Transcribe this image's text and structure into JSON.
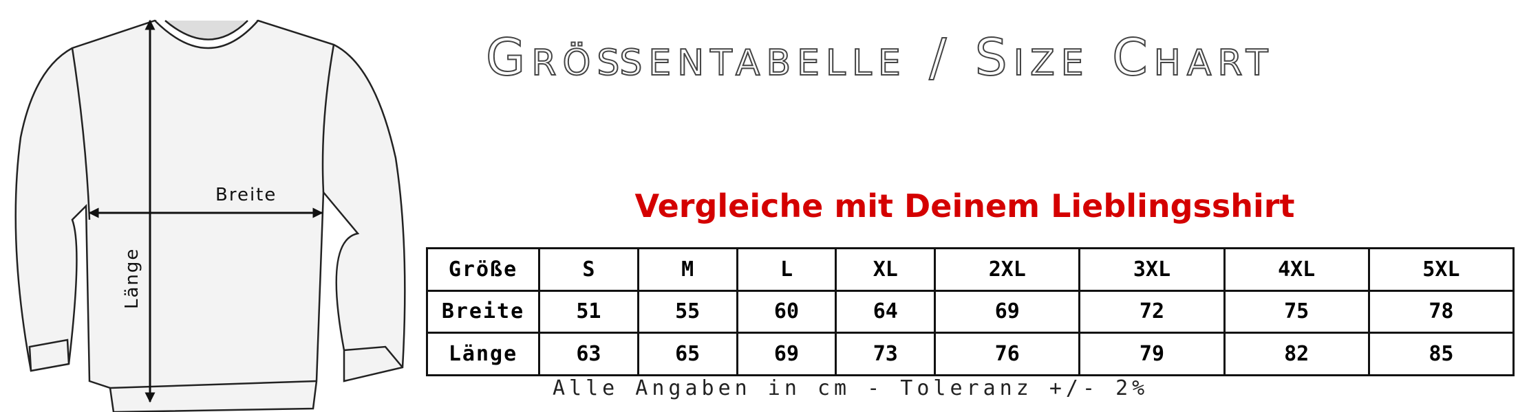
{
  "title": "Größentabelle / Size Chart",
  "subtitle": "Vergleiche mit Deinem Lieblingsshirt",
  "diagram": {
    "width_label": "Breite",
    "length_label": "Länge"
  },
  "table": {
    "header": [
      "Größe",
      "S",
      "M",
      "L",
      "XL",
      "2XL",
      "3XL",
      "4XL",
      "5XL"
    ],
    "rows": [
      [
        "Breite",
        "51",
        "55",
        "60",
        "64",
        "69",
        "72",
        "75",
        "78"
      ],
      [
        "Länge",
        "63",
        "65",
        "69",
        "73",
        "76",
        "79",
        "82",
        "85"
      ]
    ]
  },
  "footnote": "Alle Angaben in cm - Toleranz +/- 2%",
  "colors": {
    "subtitle": "#d40000",
    "lines": "#111111"
  }
}
